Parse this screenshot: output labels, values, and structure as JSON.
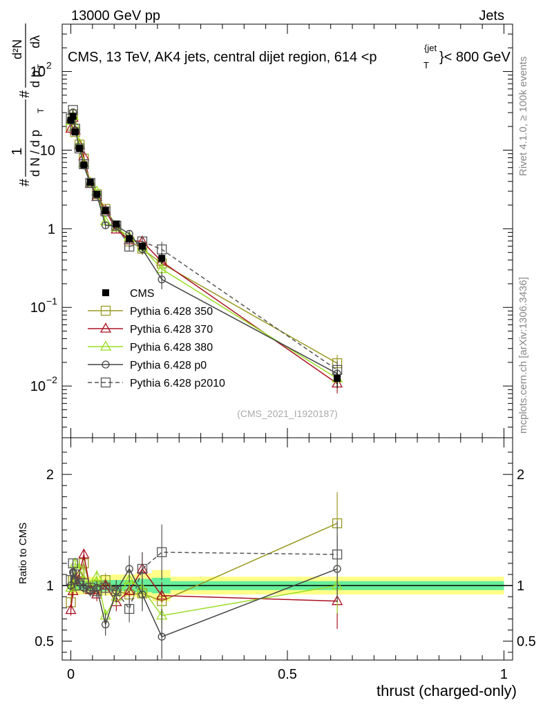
{
  "header": {
    "energy": "13000 GeV pp",
    "category": "Jets",
    "title_main": "CMS, 13 TeV, AK4 jets, central dijet region, 614 <p",
    "title_sub": "T",
    "title_sup": "{jet",
    "title_tail": "}< 800 GeV"
  },
  "side": {
    "rivet": "Rivet 4.1.0, ≥ 100k events",
    "mcplots": "mcplots.cern.ch [arXiv:1306.3436]"
  },
  "labels": {
    "analysis_id": "(CMS_2021_I1920187)",
    "ratio_ylabel": "Ratio to CMS",
    "xlabel": "thrust (charged-only)",
    "ylabel_hash1": "#",
    "ylabel_one": "1",
    "ylabel_dN": "d N / d p",
    "ylabel_T1": "T",
    "ylabel_hash2": "#",
    "ylabel_d2N": "d²N",
    "ylabel_dpT": "d p",
    "ylabel_T2": "T",
    "ylabel_dlambda": "dλ"
  },
  "chart_data": {
    "type": "line",
    "title": "CMS, 13 TeV, AK4 jets, central dijet region, 614 < pT(jet) < 800 GeV",
    "xlabel": "thrust (charged-only)",
    "ylabel": "1/(dN/dpT) d²N/(dpT dλ)",
    "yscale": "log",
    "xlim": [
      -0.02,
      1.02
    ],
    "ylim": [
      0.0022,
      400
    ],
    "ratio_ylim": [
      0.33,
      2.33
    ],
    "x": [
      0.0,
      0.005,
      0.01,
      0.02,
      0.03,
      0.045,
      0.06,
      0.08,
      0.105,
      0.135,
      0.165,
      0.21,
      0.615
    ],
    "main_ticks": [
      {
        "v": 0.01,
        "l": "10",
        "e": "−2"
      },
      {
        "v": 0.1,
        "l": "10",
        "e": "−1"
      },
      {
        "v": 1,
        "l": "1",
        "e": ""
      },
      {
        "v": 10,
        "l": "10",
        "e": ""
      },
      {
        "v": 100,
        "l": "10",
        "e": "2"
      }
    ],
    "ratio_ticks": [
      {
        "v": 0.5,
        "l": "0.5"
      },
      {
        "v": 1,
        "l": "1"
      },
      {
        "v": 2,
        "l": "2"
      }
    ],
    "x_ticks": [
      {
        "v": 0,
        "l": "0"
      },
      {
        "v": 0.5,
        "l": "0.5"
      },
      {
        "v": 1,
        "l": "1"
      }
    ],
    "data": {
      "name": "CMS",
      "values": [
        24,
        27,
        17,
        10.5,
        6.5,
        3.9,
        2.75,
        1.7,
        1.15,
        0.75,
        0.6,
        0.42,
        0.0125
      ],
      "errors": [
        0.08,
        0.07,
        0.07,
        0.08,
        0.08,
        0.08,
        0.08,
        0.1,
        0.1,
        0.12,
        0.12,
        0.15,
        0.25
      ],
      "band_outer": [
        0.09,
        0.08,
        0.08,
        0.08,
        0.08,
        0.08,
        0.08,
        0.09,
        0.1,
        0.1,
        0.11,
        0.14,
        0.08
      ],
      "band_inner": [
        0.05,
        0.04,
        0.04,
        0.04,
        0.04,
        0.04,
        0.04,
        0.05,
        0.05,
        0.05,
        0.06,
        0.07,
        0.04
      ]
    },
    "series": [
      {
        "name": "Pythia 6.428 350",
        "color": "#999922",
        "marker": "square",
        "dashed": false,
        "ratio": [
          0.85,
          1.05,
          1.0,
          1.12,
          1.2,
          0.98,
          1.0,
          1.05,
          0.95,
          0.92,
          0.93,
          0.86,
          1.56
        ],
        "rerr": [
          0.04,
          0.04,
          0.04,
          0.04,
          0.05,
          0.05,
          0.05,
          0.06,
          0.07,
          0.08,
          0.09,
          0.1,
          0.28
        ]
      },
      {
        "name": "Pythia 6.428 370",
        "color": "#aa1122",
        "marker": "triangle",
        "dashed": false,
        "ratio": [
          0.78,
          0.95,
          1.05,
          1.1,
          1.28,
          0.96,
          0.92,
          1.0,
          0.85,
          0.95,
          1.15,
          0.91,
          0.86
        ],
        "rerr": [
          0.05,
          0.05,
          0.04,
          0.04,
          0.05,
          0.05,
          0.06,
          0.06,
          0.08,
          0.1,
          0.15,
          0.12,
          0.25
        ]
      },
      {
        "name": "Pythia 6.428 380",
        "color": "#99dd22",
        "marker": "triangle",
        "dashed": false,
        "ratio": [
          0.98,
          1.0,
          1.2,
          1.15,
          1.05,
          1.0,
          1.08,
          0.73,
          0.9,
          1.05,
          0.97,
          0.73,
          1.0
        ],
        "rerr": [
          0.04,
          0.04,
          0.05,
          0.05,
          0.05,
          0.05,
          0.06,
          0.06,
          0.08,
          0.1,
          0.12,
          0.12,
          0.25
        ]
      },
      {
        "name": "Pythia 6.428 p0",
        "color": "#444444",
        "marker": "circle",
        "dashed": false,
        "ratio": [
          1.0,
          1.12,
          1.05,
          1.03,
          0.98,
          0.95,
          0.98,
          0.65,
          0.95,
          1.15,
          0.92,
          0.54,
          1.15
        ],
        "rerr": [
          0.04,
          0.04,
          0.04,
          0.04,
          0.05,
          0.05,
          0.06,
          0.1,
          0.1,
          0.12,
          0.15,
          0.25,
          0.3
        ]
      },
      {
        "name": "Pythia 6.428 p2010",
        "color": "#555555",
        "marker": "square",
        "dashed": true,
        "ratio": [
          1.05,
          1.2,
          1.1,
          1.0,
          1.02,
          0.98,
          0.95,
          0.98,
          0.95,
          0.79,
          1.15,
          1.3,
          1.28
        ],
        "rerr": [
          0.04,
          0.04,
          0.04,
          0.04,
          0.05,
          0.05,
          0.06,
          0.07,
          0.08,
          0.12,
          0.15,
          0.25,
          0.3
        ]
      }
    ]
  }
}
